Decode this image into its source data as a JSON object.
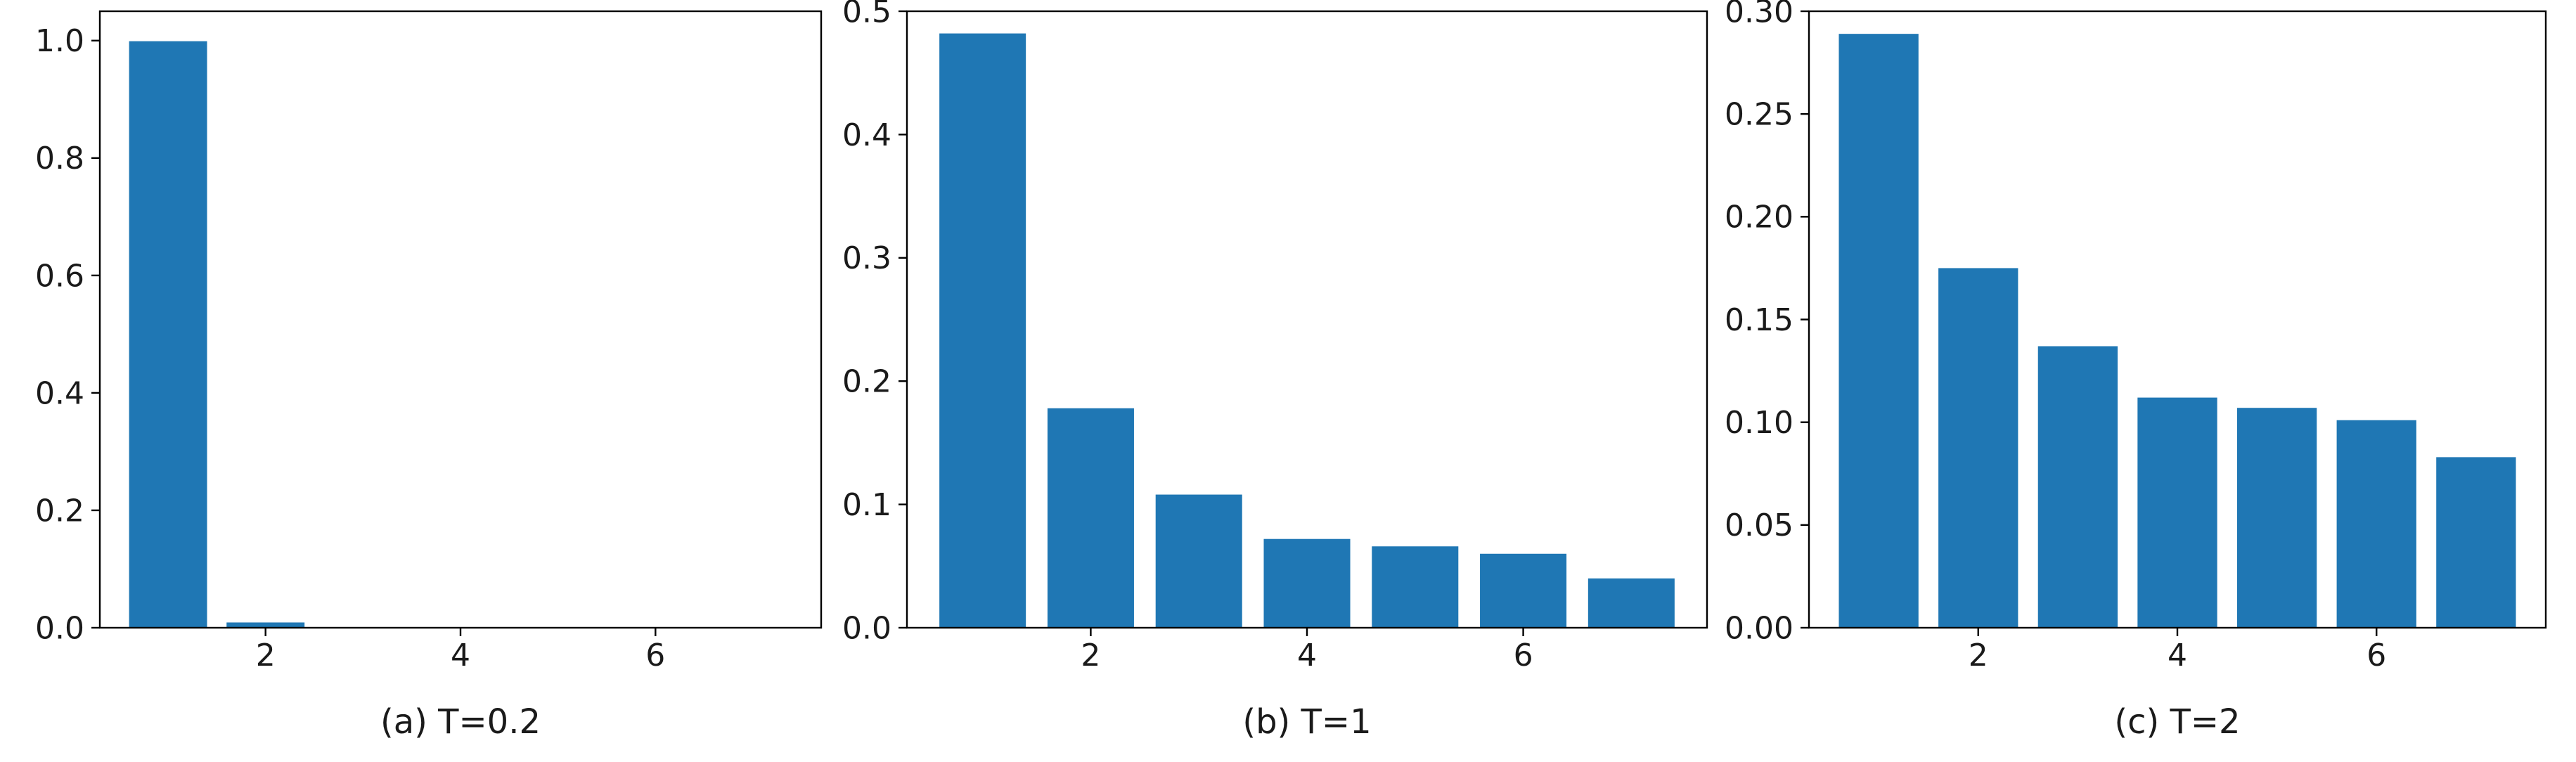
{
  "chart_data": [
    {
      "type": "bar",
      "caption": "(a) T=0.2",
      "categories": [
        1,
        2,
        3,
        4,
        5,
        6,
        7
      ],
      "values": [
        0.999,
        0.009,
        0.0002,
        0.0001,
        0.0001,
        0.0001,
        0.0
      ],
      "xlim": [
        0.3,
        7.7
      ],
      "ylim": [
        0,
        1.05
      ],
      "xticks": [
        2,
        4,
        6
      ],
      "yticks": [
        0.0,
        0.2,
        0.4,
        0.6,
        0.8,
        1.0
      ],
      "ytick_labels": [
        "0.0",
        "0.2",
        "0.4",
        "0.6",
        "0.8",
        "1.0"
      ],
      "bar_color": "#1f77b4",
      "grid": false,
      "title": "",
      "xlabel": "",
      "ylabel": ""
    },
    {
      "type": "bar",
      "caption": "(b) T=1",
      "categories": [
        1,
        2,
        3,
        4,
        5,
        6,
        7
      ],
      "values": [
        0.482,
        0.178,
        0.108,
        0.072,
        0.066,
        0.06,
        0.04
      ],
      "xlim": [
        0.3,
        7.7
      ],
      "ylim": [
        0,
        0.5
      ],
      "xticks": [
        2,
        4,
        6
      ],
      "yticks": [
        0.0,
        0.1,
        0.2,
        0.3,
        0.4,
        0.5
      ],
      "ytick_labels": [
        "0.0",
        "0.1",
        "0.2",
        "0.3",
        "0.4",
        "0.5"
      ],
      "bar_color": "#1f77b4",
      "grid": false,
      "title": "",
      "xlabel": "",
      "ylabel": ""
    },
    {
      "type": "bar",
      "caption": "(c) T=2",
      "categories": [
        1,
        2,
        3,
        4,
        5,
        6,
        7
      ],
      "values": [
        0.289,
        0.175,
        0.137,
        0.112,
        0.107,
        0.101,
        0.083
      ],
      "xlim": [
        0.3,
        7.7
      ],
      "ylim": [
        0,
        0.3
      ],
      "xticks": [
        2,
        4,
        6
      ],
      "yticks": [
        0.0,
        0.05,
        0.1,
        0.15,
        0.2,
        0.25,
        0.3
      ],
      "ytick_labels": [
        "0.00",
        "0.05",
        "0.10",
        "0.15",
        "0.20",
        "0.25",
        "0.30"
      ],
      "bar_color": "#1f77b4",
      "grid": false,
      "title": "",
      "xlabel": "",
      "ylabel": ""
    }
  ]
}
